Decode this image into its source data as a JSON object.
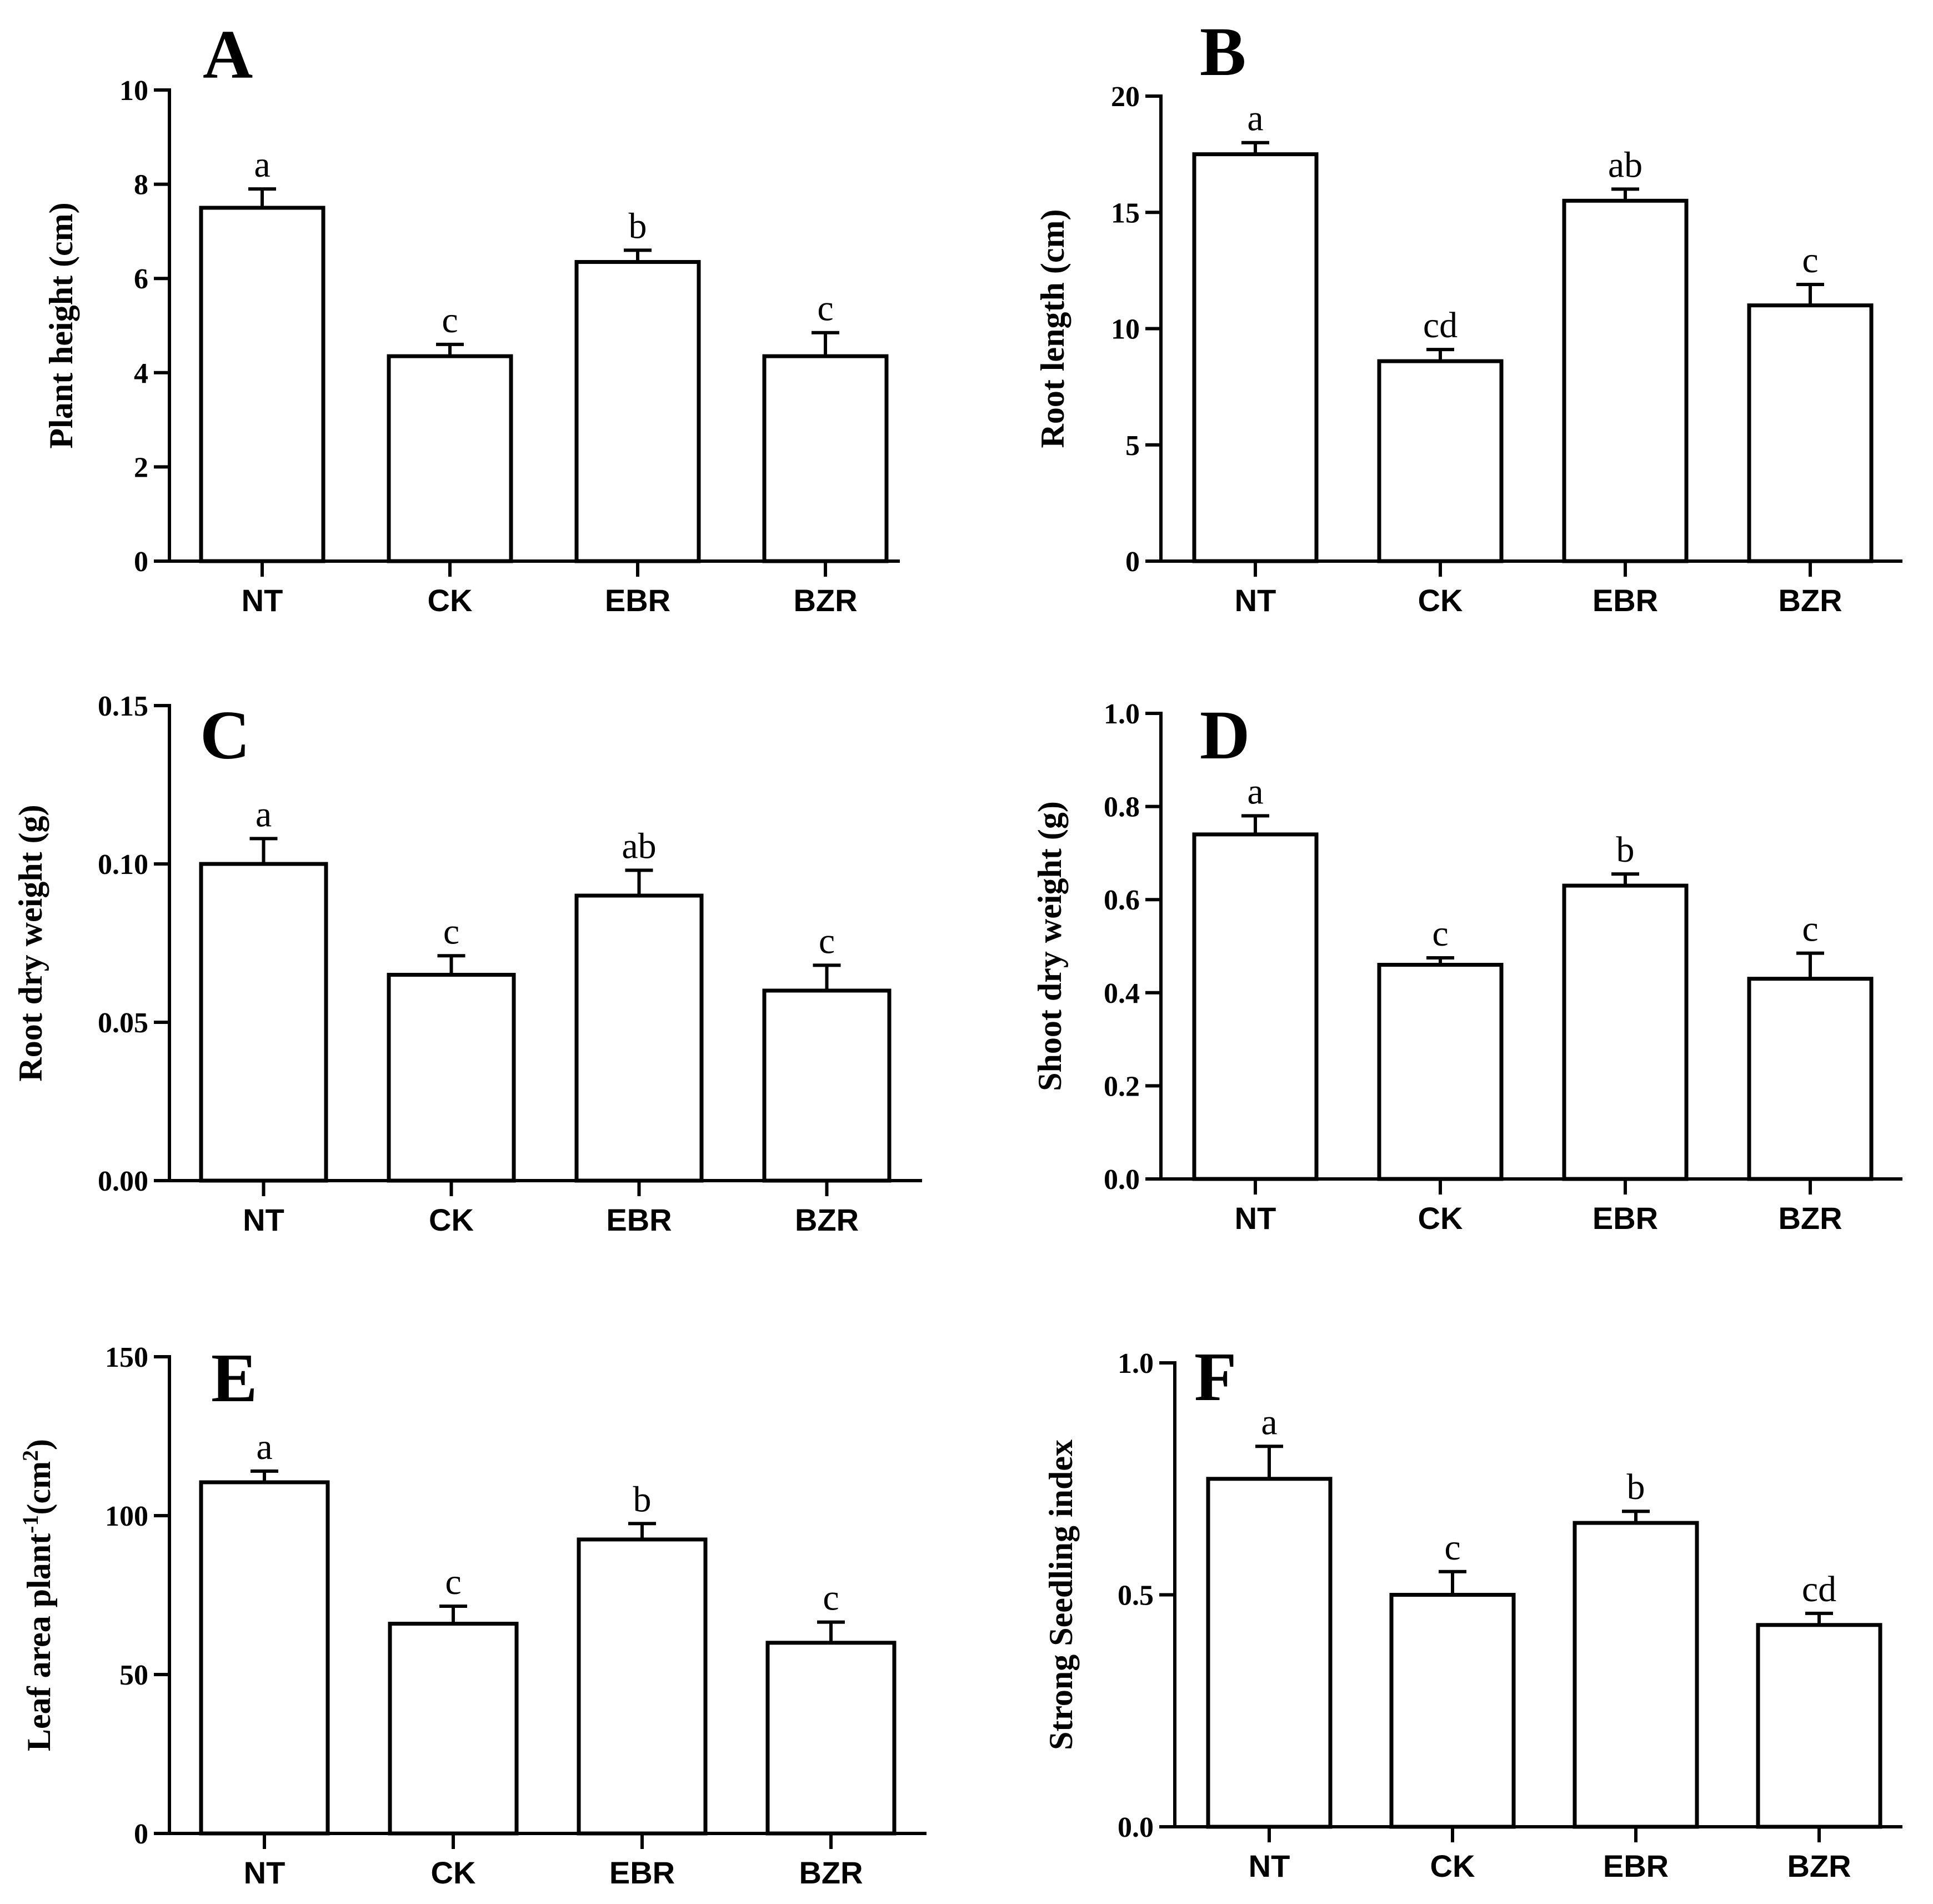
{
  "chart_data": [
    {
      "type": "bar",
      "panel": "A",
      "ylabel": "Plant height (cm)",
      "categories": [
        "NT",
        "CK",
        "EBR",
        "BZR"
      ],
      "values": [
        7.5,
        4.35,
        6.35,
        4.35
      ],
      "errors": [
        0.4,
        0.25,
        0.25,
        0.5
      ],
      "significance": [
        "a",
        "c",
        "b",
        "c"
      ],
      "ylim": [
        0,
        10
      ],
      "yticks": [
        0,
        2,
        4,
        6,
        8,
        10
      ],
      "ytick_labels": [
        "0",
        "2",
        "4",
        "6",
        "8",
        "10"
      ]
    },
    {
      "type": "bar",
      "panel": "B",
      "ylabel": "Root length (cm)",
      "categories": [
        "NT",
        "CK",
        "EBR",
        "BZR"
      ],
      "values": [
        17.5,
        8.6,
        15.5,
        11.0
      ],
      "errors": [
        0.5,
        0.5,
        0.5,
        0.9
      ],
      "significance": [
        "a",
        "cd",
        "ab",
        "c"
      ],
      "ylim": [
        0,
        20
      ],
      "yticks": [
        0,
        5,
        10,
        15,
        20
      ],
      "ytick_labels": [
        "0",
        "5",
        "10",
        "15",
        "20"
      ]
    },
    {
      "type": "bar",
      "panel": "C",
      "ylabel": "Root dry weight (g)",
      "categories": [
        "NT",
        "CK",
        "EBR",
        "BZR"
      ],
      "values": [
        0.1,
        0.065,
        0.09,
        0.06
      ],
      "errors": [
        0.008,
        0.006,
        0.008,
        0.008
      ],
      "significance": [
        "a",
        "c",
        "ab",
        "c"
      ],
      "ylim": [
        0,
        0.15
      ],
      "yticks": [
        0,
        0.05,
        0.1,
        0.15
      ],
      "ytick_labels": [
        "0.00",
        "0.05",
        "0.10",
        "0.15"
      ]
    },
    {
      "type": "bar",
      "panel": "D",
      "ylabel": "Shoot dry weight (g)",
      "categories": [
        "NT",
        "CK",
        "EBR",
        "BZR"
      ],
      "values": [
        0.74,
        0.46,
        0.63,
        0.43
      ],
      "errors": [
        0.04,
        0.015,
        0.025,
        0.055
      ],
      "significance": [
        "a",
        "c",
        "b",
        "c"
      ],
      "ylim": [
        0,
        1.0
      ],
      "yticks": [
        0,
        0.2,
        0.4,
        0.6,
        0.8,
        1.0
      ],
      "ytick_labels": [
        "0.0",
        "0.2",
        "0.4",
        "0.6",
        "0.8",
        "1.0"
      ]
    },
    {
      "type": "bar",
      "panel": "E",
      "ylabel": "Leaf area plant",
      "ylabel_sup1": "-1",
      "ylabel_mid": "(cm",
      "ylabel_sup2": "2",
      "ylabel_end": ")",
      "categories": [
        "NT",
        "CK",
        "EBR",
        "BZR"
      ],
      "values": [
        110.5,
        66,
        92.5,
        60
      ],
      "errors": [
        3.5,
        5.5,
        5.0,
        6.5
      ],
      "significance": [
        "a",
        "c",
        "b",
        "c"
      ],
      "ylim": [
        0,
        150
      ],
      "yticks": [
        0,
        50,
        100,
        150
      ],
      "ytick_labels": [
        "0",
        "50",
        "100",
        "150"
      ]
    },
    {
      "type": "bar",
      "panel": "F",
      "ylabel": "Strong Seedling index",
      "categories": [
        "NT",
        "CK",
        "EBR",
        "BZR"
      ],
      "values": [
        0.75,
        0.5,
        0.655,
        0.435
      ],
      "errors": [
        0.07,
        0.05,
        0.025,
        0.025
      ],
      "significance": [
        "a",
        "c",
        "b",
        "cd"
      ],
      "ylim": [
        0,
        1.0
      ],
      "yticks": [
        0,
        0.5,
        1.0
      ],
      "ytick_labels": [
        "0.0",
        "0.5",
        "1.0"
      ]
    }
  ]
}
